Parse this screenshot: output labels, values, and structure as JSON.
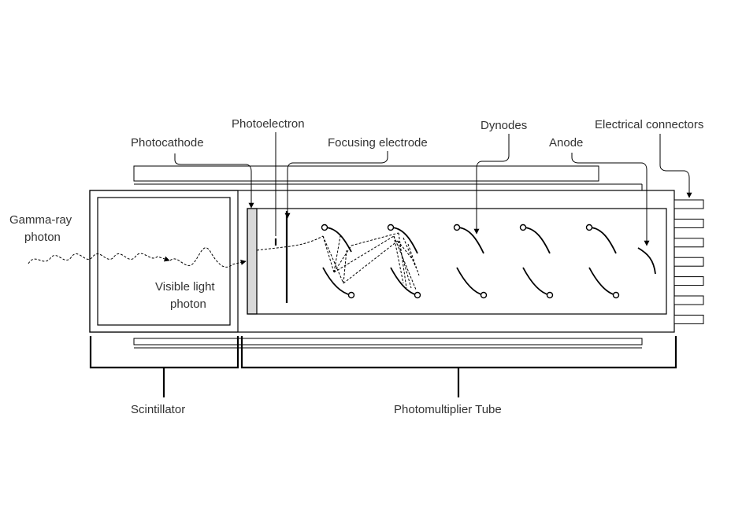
{
  "labels": {
    "gamma_ray_line1": "Gamma-ray",
    "gamma_ray_line2": "photon",
    "visible_light_line1": "Visible light",
    "visible_light_line2": "photon",
    "photocathode": "Photocathode",
    "photoelectron": "Photoelectron",
    "focusing_electrode": "Focusing electrode",
    "dynodes": "Dynodes",
    "anode": "Anode",
    "electrical_connectors": "Electrical connectors",
    "scintillator": "Scintillator",
    "photomultiplier_tube": "Photomultiplier Tube"
  },
  "colors": {
    "line": "#000000",
    "label_text": "#333333",
    "photocathode_fill": "#d9d9d9"
  }
}
